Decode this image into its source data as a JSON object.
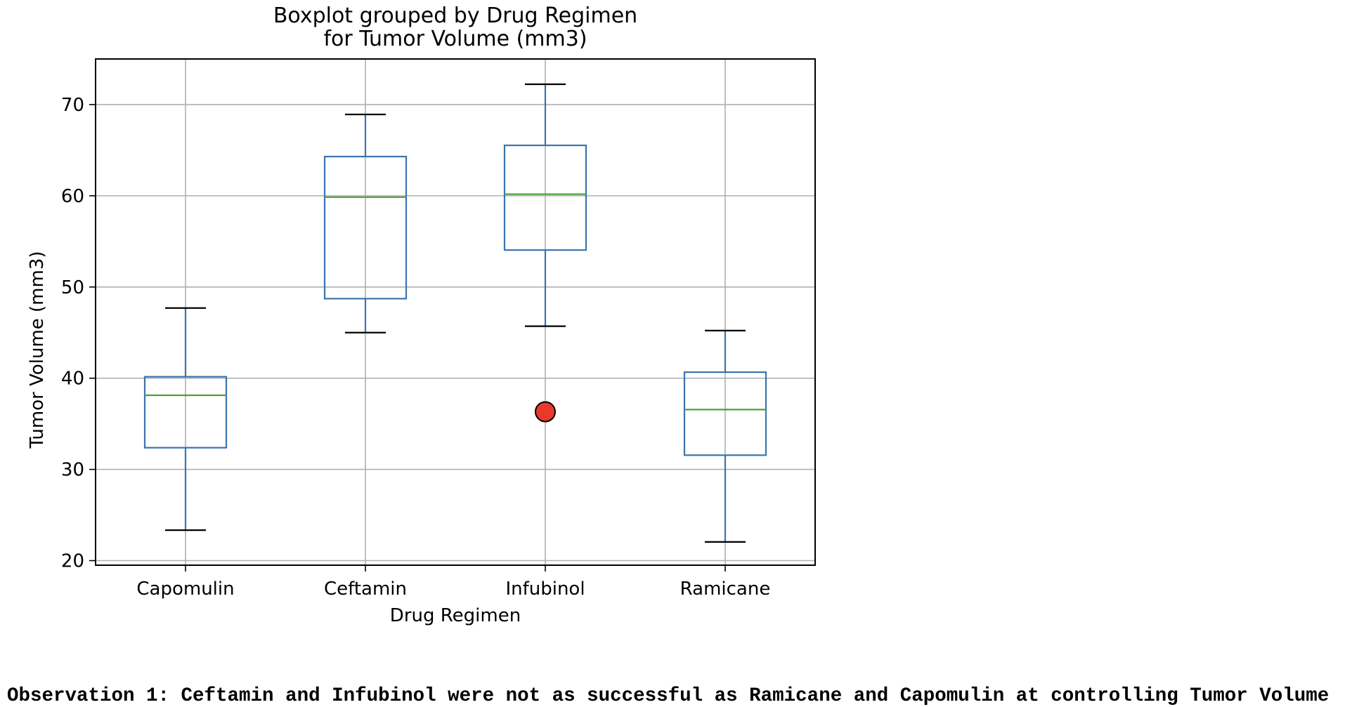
{
  "chart_data": {
    "type": "boxplot",
    "title": [
      "Boxplot grouped by Drug Regimen",
      "for Tumor Volume (mm3)"
    ],
    "xlabel": "Drug Regimen",
    "ylabel": "Tumor Volume (mm3)",
    "ylim": [
      19.5,
      75
    ],
    "yticks": [
      20,
      30,
      40,
      50,
      60,
      70
    ],
    "grid": true,
    "legend": "none",
    "colors": {
      "box": "#3a74ad",
      "median": "#4f9e3a",
      "whisker": "#3a74ad",
      "cap": "#000000",
      "outlier": "#e8392a",
      "grid": "#b0b0b0",
      "axes": "#000000"
    },
    "categories": [
      "Capomulin",
      "Ceftamin",
      "Infubinol",
      "Ramicane"
    ],
    "boxes": [
      {
        "name": "Capomulin",
        "whisker_low": 23.34,
        "q1": 32.38,
        "median": 38.13,
        "q3": 40.16,
        "whisker_high": 47.69,
        "outliers": []
      },
      {
        "name": "Ceftamin",
        "whisker_low": 45.0,
        "q1": 48.72,
        "median": 59.85,
        "q3": 64.3,
        "whisker_high": 68.92,
        "outliers": []
      },
      {
        "name": "Infubinol",
        "whisker_low": 45.7,
        "q1": 54.05,
        "median": 60.17,
        "q3": 65.53,
        "whisker_high": 72.23,
        "outliers": [
          36.32
        ]
      },
      {
        "name": "Ramicane",
        "whisker_low": 22.05,
        "q1": 31.56,
        "median": 36.56,
        "q3": 40.66,
        "whisker_high": 45.22,
        "outliers": []
      }
    ]
  },
  "observation": "Observation 1: Ceftamin and Infubinol were not as successful as Ramicane and Capomulin at controlling Tumor Volume"
}
